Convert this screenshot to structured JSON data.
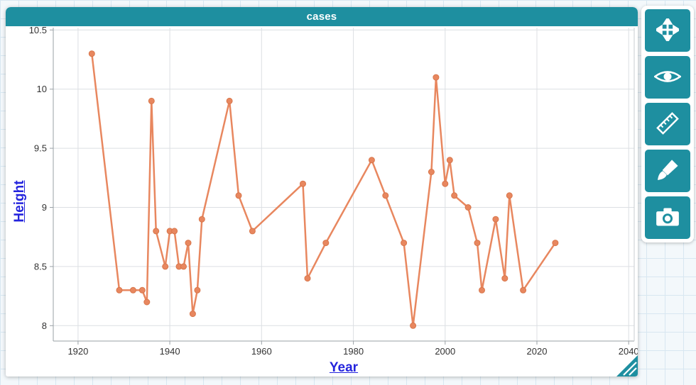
{
  "window": {
    "title": "cases"
  },
  "chart_data": {
    "type": "line",
    "title": "cases",
    "xlabel": "Year",
    "ylabel": "Height",
    "xlim": [
      1914.6,
      2041.2
    ],
    "ylim": [
      7.87,
      10.52
    ],
    "x_ticks": [
      1920,
      1940,
      1960,
      1980,
      2000,
      2020,
      2040
    ],
    "y_ticks": [
      8,
      8.5,
      9,
      9.5,
      10,
      10.5
    ],
    "grid": true,
    "legend_position": "none",
    "series": [
      {
        "name": "cases",
        "color": "#e8875f",
        "marker": "circle",
        "points": [
          [
            1923,
            10.3
          ],
          [
            1929,
            8.3
          ],
          [
            1932,
            8.3
          ],
          [
            1934,
            8.3
          ],
          [
            1935,
            8.2
          ],
          [
            1936,
            9.9
          ],
          [
            1937,
            8.8
          ],
          [
            1939,
            8.5
          ],
          [
            1940,
            8.8
          ],
          [
            1941,
            8.8
          ],
          [
            1942,
            8.5
          ],
          [
            1943,
            8.5
          ],
          [
            1944,
            8.7
          ],
          [
            1945,
            8.1
          ],
          [
            1946,
            8.3
          ],
          [
            1947,
            8.9
          ],
          [
            1953,
            9.9
          ],
          [
            1955,
            9.1
          ],
          [
            1958,
            8.8
          ],
          [
            1969,
            9.2
          ],
          [
            1970,
            8.4
          ],
          [
            1974,
            8.7
          ],
          [
            1984,
            9.4
          ],
          [
            1987,
            9.1
          ],
          [
            1991,
            8.7
          ],
          [
            1993,
            8.0
          ],
          [
            1997,
            9.3
          ],
          [
            1998,
            10.1
          ],
          [
            2000,
            9.2
          ],
          [
            2001,
            9.4
          ],
          [
            2002,
            9.1
          ],
          [
            2005,
            9.0
          ],
          [
            2007,
            8.7
          ],
          [
            2008,
            8.3
          ],
          [
            2011,
            8.9
          ],
          [
            2013,
            8.4
          ],
          [
            2014,
            9.1
          ],
          [
            2017,
            8.3
          ],
          [
            2024,
            8.7
          ]
        ]
      }
    ]
  },
  "palette": {
    "buttons": [
      {
        "id": "rescale",
        "icon": "move-arrows-icon"
      },
      {
        "id": "hide-show",
        "icon": "eye-icon"
      },
      {
        "id": "measure",
        "icon": "ruler-icon"
      },
      {
        "id": "format",
        "icon": "brush-icon"
      },
      {
        "id": "snapshot",
        "icon": "camera-icon"
      }
    ]
  },
  "colors": {
    "teal": "#1e8fa0",
    "line": "#e8875f",
    "axis_label_blue": "#2424dd",
    "grid_line": "#dcdfe3",
    "canvas_grid": "#d8e7f1"
  }
}
